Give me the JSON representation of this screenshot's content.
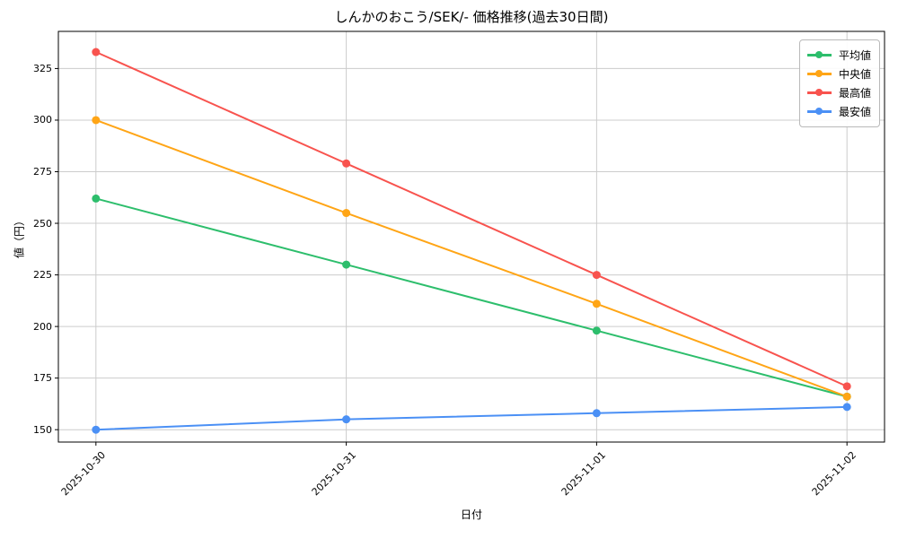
{
  "chart_data": {
    "type": "line",
    "title": "しんかのおこう/SEK/- 価格推移(過去30日間)",
    "xlabel": "日付",
    "ylabel": "値（円）",
    "categories": [
      "2025-10-30",
      "2025-10-31",
      "2025-11-01",
      "2025-11-02"
    ],
    "series": [
      {
        "name": "平均値",
        "color": "#2dbe6c",
        "values": [
          262,
          230,
          198,
          166
        ]
      },
      {
        "name": "中央値",
        "color": "#ffa516",
        "values": [
          300,
          255,
          211,
          166
        ]
      },
      {
        "name": "最高値",
        "color": "#f8534e",
        "values": [
          333,
          279,
          225,
          171
        ]
      },
      {
        "name": "最安値",
        "color": "#4b90f5",
        "values": [
          150,
          155,
          158,
          161
        ]
      }
    ],
    "yticks": [
      150,
      175,
      200,
      225,
      250,
      275,
      300,
      325
    ],
    "ylim": [
      144,
      343
    ],
    "xlim": [
      -0.15,
      3.15
    ],
    "grid": true,
    "grid_color": "#cccccc",
    "spine_color": "#000000",
    "background": "#ffffff",
    "legend_position": "upper right"
  }
}
